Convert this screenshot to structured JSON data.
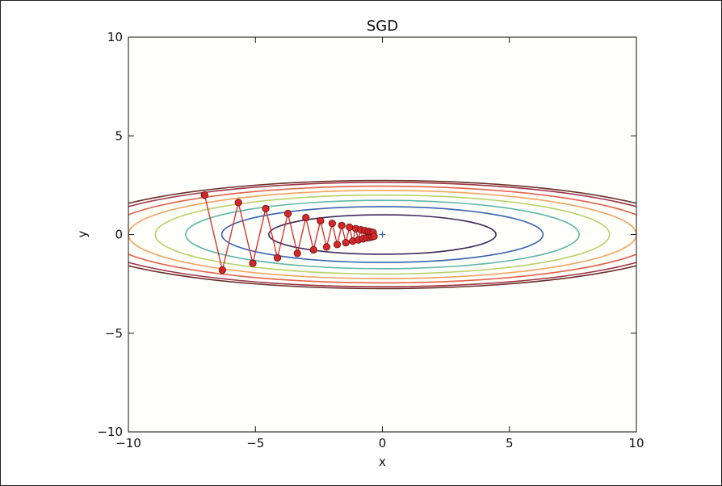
{
  "chart_data": {
    "type": "contour",
    "title": "SGD",
    "xlabel": "x",
    "ylabel": "y",
    "xlim": [
      -10,
      10
    ],
    "ylim": [
      -10,
      10
    ],
    "xticks": [
      -10,
      -5,
      0,
      5,
      10
    ],
    "yticks": [
      -10,
      -5,
      0,
      5,
      10
    ],
    "tick_labels_x": [
      "−10",
      "−5",
      "0",
      "5",
      "10"
    ],
    "tick_labels_y": [
      "−10",
      "−5",
      "0",
      "5",
      "10"
    ],
    "function": "f(x, y) = x^2 / 20 + y^2",
    "minimum_marker": {
      "x": 0,
      "y": 0,
      "marker": "+",
      "color": "#3a5fa8"
    },
    "contours": [
      {
        "level": 1,
        "color": "#3b2a5e"
      },
      {
        "level": 2,
        "color": "#3a64b0"
      },
      {
        "level": 3,
        "color": "#5fb6a8"
      },
      {
        "level": 4,
        "color": "#b9d26b"
      },
      {
        "level": 5,
        "color": "#f4a360"
      },
      {
        "level": 6,
        "color": "#e5604a"
      },
      {
        "level": 7,
        "color": "#9e3346"
      },
      {
        "level": 7.5,
        "color": "#6b2f2a"
      }
    ],
    "series": [
      {
        "color": "#d62728",
        "x": [
          -7.0,
          -6.3,
          -5.67,
          -5.103,
          -4.593,
          -4.133,
          -3.72,
          -3.348,
          -3.013,
          -2.712,
          -2.44,
          -2.196,
          -1.977,
          -1.779,
          -1.601,
          -1.441,
          -1.297,
          -1.167,
          -1.05,
          -0.945,
          -0.851,
          -0.766,
          -0.689,
          -0.62,
          -0.558,
          -0.502,
          -0.452,
          -0.407,
          -0.366,
          -0.33
        ],
        "y": [
          2.0,
          -1.8,
          1.62,
          -1.458,
          1.312,
          -1.181,
          1.063,
          -0.957,
          0.861,
          -0.775,
          0.697,
          -0.628,
          0.565,
          -0.508,
          0.458,
          -0.412,
          0.371,
          -0.334,
          0.3,
          -0.27,
          0.243,
          -0.219,
          0.197,
          -0.177,
          0.16,
          -0.144,
          0.129,
          -0.116,
          0.105,
          -0.094
        ]
      }
    ]
  }
}
